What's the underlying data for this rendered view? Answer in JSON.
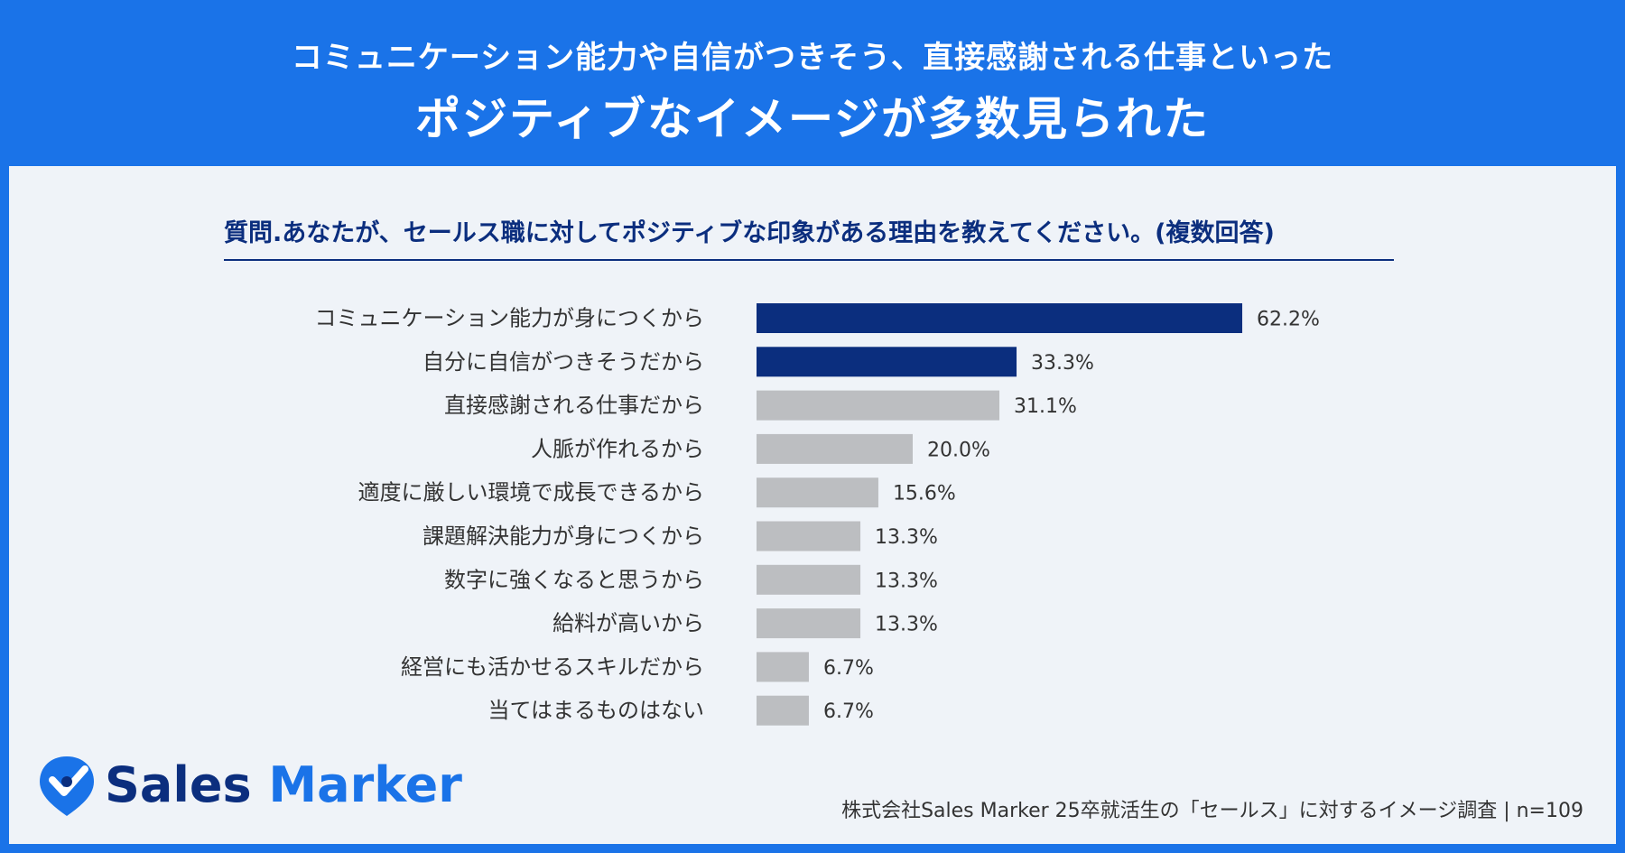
{
  "header": {
    "line1": "コミュニケーション能力や自信がつきそう、直接感謝される仕事といった",
    "line2": "ポジティブなイメージが多数見られた"
  },
  "question": "質問.あなたが、セールス職に対してポジティブな印象がある理由を教えてください。(複数回答)",
  "chart_data": {
    "type": "bar",
    "orientation": "horizontal",
    "categories": [
      "コミュニケーション能力が身につくから",
      "自分に自信がつきそうだから",
      "直接感謝される仕事だから",
      "人脈が作れるから",
      "適度に厳しい環境で成長できるから",
      "課題解決能力が身につくから",
      "数字に強くなると思うから",
      "給料が高いから",
      "経営にも活かせるスキルだから",
      "当てはまるものはない"
    ],
    "values": [
      62.2,
      33.3,
      31.1,
      20.0,
      15.6,
      13.3,
      13.3,
      13.3,
      6.7,
      6.7
    ],
    "value_labels": [
      "62.2%",
      "33.3%",
      "31.1%",
      "20.0%",
      "15.6%",
      "13.3%",
      "13.3%",
      "13.3%",
      "6.7%",
      "6.7%"
    ],
    "highlight": [
      true,
      true,
      false,
      false,
      false,
      false,
      false,
      false,
      false,
      false
    ],
    "colors": {
      "highlight": "#0b2e7e",
      "normal": "#bcbec1"
    },
    "xlim": [
      0,
      100
    ],
    "grid": false,
    "legend": "none"
  },
  "logo": {
    "part1": "Sales ",
    "part2": "Marker"
  },
  "footer": "株式会社Sales Marker 25卒就活生の「セールス」に対するイメージ調査 | n=109",
  "colors": {
    "brand_blue": "#1a73e8",
    "navy": "#0b2e7e",
    "panel": "#eff3f8"
  }
}
